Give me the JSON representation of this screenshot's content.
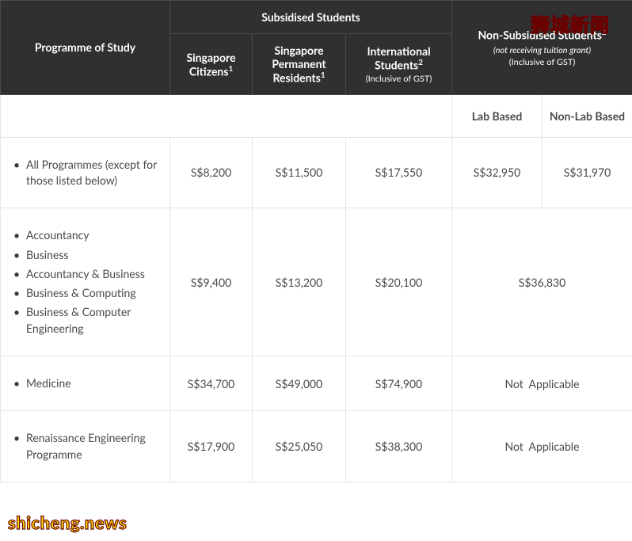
{
  "watermarks": {
    "top": "狮城新闻",
    "bottom": "shicheng.news"
  },
  "header": {
    "programme": "Programme of Study",
    "subsidised_group": "Subsidised Students",
    "citizens": {
      "label": "Singapore Citizens",
      "sup": "1"
    },
    "pr": {
      "label": "Singapore Permanent Residents",
      "sup": "1"
    },
    "intl": {
      "label": "International Students",
      "sup": "2",
      "note": "(Inclusive of GST)"
    },
    "nonsub": {
      "label": "Non-Subsidised Students",
      "sup": "2",
      "note1": "(not receiving tuition grant)",
      "note2": "(Inclusive of GST)"
    },
    "lab": "Lab Based",
    "nonlab": "Non-Lab Based"
  },
  "rows": [
    {
      "programmes": [
        "All Programmes (except for those listed below)"
      ],
      "citizens": "S$8,200",
      "pr": "S$11,500",
      "intl": "S$17,550",
      "lab": "S$32,950",
      "nonlab": "S$31,970",
      "merge_nonsub": false
    },
    {
      "programmes": [
        "Accountancy",
        "Business",
        "Accountancy & Business",
        "Business & Computing",
        "Business & Computer Engineering"
      ],
      "citizens": "S$9,400",
      "pr": "S$13,200",
      "intl": "S$20,100",
      "nonsub_merged": "S$36,830",
      "merge_nonsub": true
    },
    {
      "programmes": [
        "Medicine"
      ],
      "citizens": "S$34,700",
      "pr": "S$49,000",
      "intl": "S$74,900",
      "nonsub_merged": "Not  Applicable",
      "merge_nonsub": true
    },
    {
      "programmes": [
        "Renaissance Engineering Programme"
      ],
      "citizens": "S$17,900",
      "pr": "S$25,050",
      "intl": "S$38,300",
      "nonsub_merged": "Not  Applicable",
      "merge_nonsub": true
    }
  ],
  "style": {
    "header_bg": "#303030",
    "header_fg": "#ffffff",
    "border_color": "#e5e5e5",
    "text_color": "#4a4a4a",
    "font_size_body": 14,
    "font_size_header": 14
  }
}
